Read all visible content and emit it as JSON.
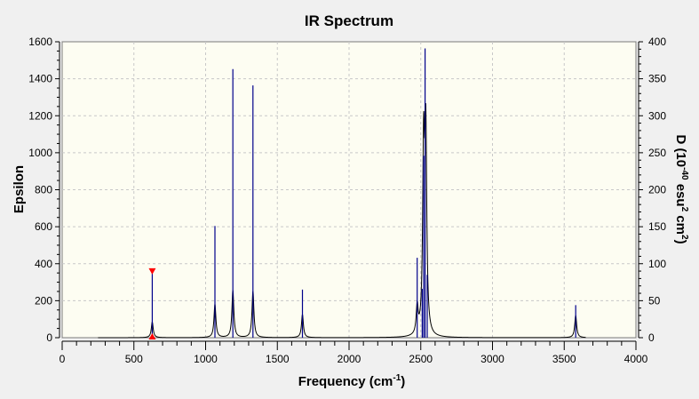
{
  "chart_data": {
    "type": "line",
    "title": "IR Spectrum",
    "xlabel": "Frequency (cm",
    "xlabel_sup": "-1",
    "xlabel_end": ")",
    "ylabel_left": "Epsilon",
    "ylabel_right_prefix": "D (10",
    "ylabel_right_sup1": "-40",
    "ylabel_right_mid": " esu",
    "ylabel_right_sup2": "2",
    "ylabel_right_mid2": " cm",
    "ylabel_right_sup3": "2",
    "ylabel_right_end": ")",
    "xlim": [
      0,
      4000
    ],
    "ylim_left": [
      0,
      1600
    ],
    "ylim_right": [
      0,
      400
    ],
    "x_ticks": [
      0,
      500,
      1000,
      1500,
      2000,
      2500,
      3000,
      3500,
      4000
    ],
    "y_left_ticks": [
      0,
      200,
      400,
      600,
      800,
      1000,
      1200,
      1400,
      1600
    ],
    "y_right_ticks": [
      0,
      50,
      100,
      150,
      200,
      250,
      300,
      350,
      400
    ],
    "grid": true,
    "colors": {
      "plot_bg": "#fdfdf2",
      "grid": "#c8c8c8",
      "spectrum": "#000000",
      "stick": "#00008b",
      "marker": "#ff0000"
    },
    "spectrum_epsilon": {
      "baseline_start": 250,
      "baseline_end": 3650,
      "peaks": [
        {
          "freq": 628,
          "eps": 85
        },
        {
          "freq": 1065,
          "eps": 180
        },
        {
          "freq": 1190,
          "eps": 255
        },
        {
          "freq": 1330,
          "eps": 250
        },
        {
          "freq": 1675,
          "eps": 125
        },
        {
          "freq": 2475,
          "eps": 150
        },
        {
          "freq": 2520,
          "eps": 980
        },
        {
          "freq": 2535,
          "eps": 1040
        },
        {
          "freq": 3580,
          "eps": 120
        }
      ]
    },
    "sticks_D": [
      {
        "freq": 628,
        "D": 89
      },
      {
        "freq": 1065,
        "D": 151
      },
      {
        "freq": 1190,
        "D": 363
      },
      {
        "freq": 1330,
        "D": 341
      },
      {
        "freq": 1675,
        "D": 65
      },
      {
        "freq": 2475,
        "D": 108
      },
      {
        "freq": 2510,
        "D": 66
      },
      {
        "freq": 2520,
        "D": 246
      },
      {
        "freq": 2530,
        "D": 391
      },
      {
        "freq": 2545,
        "D": 85
      },
      {
        "freq": 3580,
        "D": 44
      }
    ],
    "selected_marker": {
      "freq": 628,
      "D": 89
    }
  }
}
